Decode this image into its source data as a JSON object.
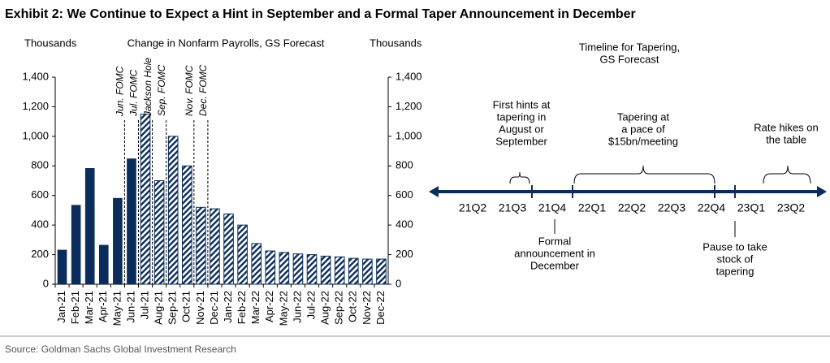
{
  "header": {
    "title": "Exhibit 2: We Continue to Expect a Hint in September and a Formal Taper Announcement in December"
  },
  "chart_data": {
    "type": "bar",
    "title": "Change in Nonfarm Payrolls, GS Forecast",
    "y_label": "Thousands",
    "y2_label": "Thousands",
    "categories": [
      "Jan-21",
      "Feb-21",
      "Mar-21",
      "Apr-21",
      "May-21",
      "Jun-21",
      "Jul-21",
      "Aug-21",
      "Sep-21",
      "Oct-21",
      "Nov-21",
      "Dec-21",
      "Jan-22",
      "Feb-22",
      "Mar-22",
      "Apr-22",
      "May-22",
      "Jun-22",
      "Jul-22",
      "Aug-22",
      "Sep-22",
      "Oct-22",
      "Nov-22",
      "Dec-22"
    ],
    "series": [
      {
        "color": "#0b2d5b",
        "pattern": "solid",
        "values": [
          233,
          536,
          785,
          266,
          583,
          850,
          null,
          null,
          null,
          null,
          null,
          null,
          null,
          null,
          null,
          null,
          null,
          null,
          null,
          null,
          null,
          null,
          null,
          null
        ]
      },
      {
        "color": "#0b2d5b",
        "pattern": "hatch",
        "values": [
          null,
          null,
          null,
          null,
          null,
          null,
          1150,
          700,
          1000,
          800,
          520,
          510,
          475,
          400,
          275,
          225,
          215,
          205,
          200,
          190,
          185,
          175,
          170,
          170
        ]
      }
    ],
    "ylim": [
      0,
      1400
    ],
    "yticks": [
      0,
      200,
      400,
      600,
      800,
      {
        "value": 1000,
        "label": "1,000"
      },
      {
        "value": 1200,
        "label": "1,200"
      },
      {
        "value": 1400,
        "label": "1,400"
      }
    ],
    "y2lim": [
      0,
      1400
    ],
    "y2ticks": [
      0,
      200,
      400,
      600,
      800,
      {
        "value": 1000,
        "label": "1,000"
      },
      {
        "value": 1200,
        "label": "1,200"
      },
      {
        "value": 1400,
        "label": "1,400"
      }
    ],
    "annotations": [
      {
        "text": "Jun. FOMC",
        "x": "Jun-21"
      },
      {
        "text": "Jul. FOMC",
        "x": "Jul-21"
      },
      {
        "text": "Jackson Hole",
        "x": "Aug-21"
      },
      {
        "text": "Sep. FOMC",
        "x": "Sep-21"
      },
      {
        "text": "Nov. FOMC",
        "x": "Nov-21"
      },
      {
        "text": "Dec. FOMC",
        "x": "Dec-21"
      }
    ]
  },
  "timeline": {
    "title": [
      "Timeline for Tapering,",
      "GS Forecast"
    ],
    "periods": [
      "21Q2",
      "21Q3",
      "21Q4",
      "22Q1",
      "22Q2",
      "22Q3",
      "22Q4",
      "23Q1",
      "23Q2"
    ],
    "notes": [
      {
        "lines": [
          "First hints at",
          "tapering in",
          "August or",
          "September"
        ]
      },
      {
        "lines": [
          "Tapering at",
          "a pace of",
          "$15bn/meeting"
        ]
      },
      {
        "lines": [
          "Rate hikes on",
          "the table"
        ]
      },
      {
        "lines": [
          "Formal",
          "announcement in",
          "December"
        ]
      },
      {
        "lines": [
          "Pause to take",
          "stock of",
          "tapering"
        ]
      }
    ]
  },
  "footer": {
    "source": "Source: Goldman Sachs Global Investment Research"
  }
}
